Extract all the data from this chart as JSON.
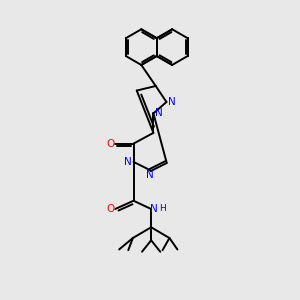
{
  "background_color": "#e8e8e8",
  "bond_color": "#000000",
  "nitrogen_color": "#0000ff",
  "oxygen_color": "#ff0000",
  "lw": 1.4,
  "xlim": [
    0,
    10
  ],
  "ylim": [
    0,
    13
  ],
  "figsize": [
    3.0,
    3.0
  ],
  "dpi": 100
}
